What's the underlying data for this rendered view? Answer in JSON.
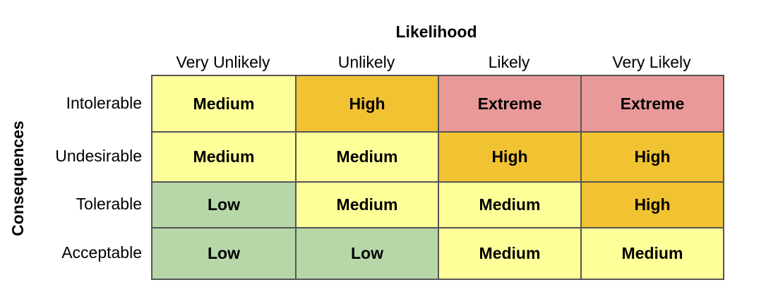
{
  "x_axis_title": "Likelihood",
  "y_axis_title": "Consequences",
  "columns": [
    "Very Unlikely",
    "Unlikely",
    "Likely",
    "Very Likely"
  ],
  "rows": [
    {
      "label": "Intolerable",
      "cells": [
        "Medium",
        "High",
        "Extreme",
        "Extreme"
      ]
    },
    {
      "label": "Undesirable",
      "cells": [
        "Medium",
        "Medium",
        "High",
        "High"
      ]
    },
    {
      "label": "Tolerable",
      "cells": [
        "Low",
        "Medium",
        "Medium",
        "High"
      ]
    },
    {
      "label": "Acceptable",
      "cells": [
        "Low",
        "Low",
        "Medium",
        "Medium"
      ]
    }
  ],
  "level_colors": {
    "Low": "#b7d7a8",
    "Medium": "#ffff99",
    "High": "#f1c232",
    "Extreme": "#ea9999"
  }
}
